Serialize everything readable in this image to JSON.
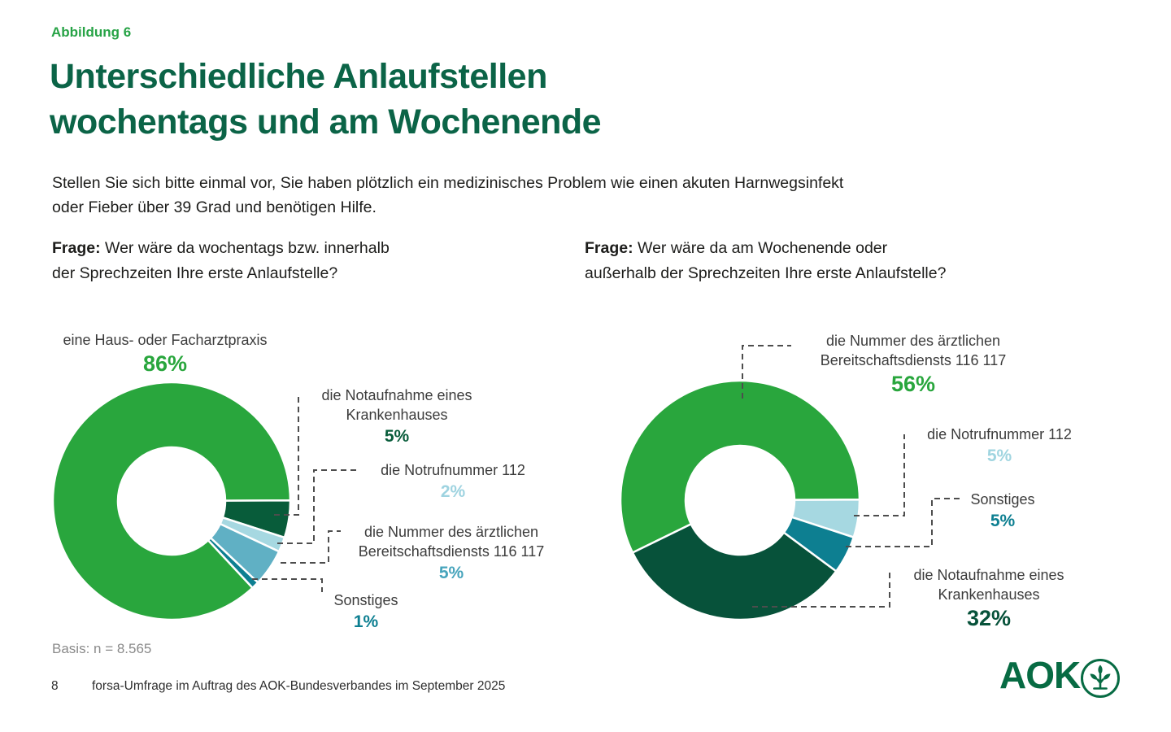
{
  "page": {
    "figure_label": "Abbildung 6",
    "title_line1": "Unterschiedliche Anlaufstellen",
    "title_line2": "wochentags und am Wochenende",
    "intro_line1": "Stellen Sie sich bitte einmal vor, Sie haben plötzlich ein medizinisches Problem wie einen akuten Harnwegsinfekt",
    "intro_line2": "oder Fieber über 39 Grad und benötigen Hilfe.",
    "basis": "Basis: n = 8.565",
    "footer": {
      "page_number": "8",
      "source": "forsa-Umfrage im Auftrag des AOK-Bundesverbandes im September 2025"
    },
    "logo_text": "AOK"
  },
  "colors": {
    "brand_green": "#29a63d",
    "dark_green": "#085c3a",
    "light_blue": "#a6d8e1",
    "mid_teal": "#60b0c4",
    "dark_teal": "#0d7f91",
    "title_green": "#0b6447",
    "figure_label_green": "#27a346",
    "label_gray": "#3c3c3c",
    "muted_gray": "#8a8a8a",
    "leader_line": "#4d4d4d",
    "logo_green": "#076b43"
  },
  "chart_data": [
    {
      "type": "pie",
      "subtype": "donut",
      "id": "weekday",
      "question_prefix": "Frage:",
      "question_line1": "Wer wäre da wochentags bzw. innerhalb",
      "question_line2": "der Sprechzeiten Ihre erste Anlaufstelle?",
      "start_angle": 137,
      "legend_position": "callouts-with-dashed-leaders",
      "segments": [
        {
          "label": "eine Haus- oder Facharztpraxis",
          "value": 86,
          "display": "86%",
          "color": "#29a63d",
          "value_color": "#29a63d"
        },
        {
          "label": "die Notaufnahme eines Krankenhauses",
          "value": 5,
          "display": "5%",
          "color": "#085c3a",
          "value_color": "#085c3a"
        },
        {
          "label": "die Notrufnummer 112",
          "value": 2,
          "display": "2%",
          "color": "#a6d8e1",
          "value_color": "#9ed3e0"
        },
        {
          "label": "die Nummer des ärztlichen Bereitschaftsdiensts 116 117",
          "value": 5,
          "display": "5%",
          "color": "#60b0c4",
          "value_color": "#47a4bc"
        },
        {
          "label": "Sonstiges",
          "value": 1,
          "display": "1%",
          "color": "#0d7f91",
          "value_color": "#0d7f91"
        }
      ]
    },
    {
      "type": "pie",
      "subtype": "donut",
      "id": "weekend",
      "question_prefix": "Frage:",
      "question_line1": "Wer wäre da am Wochenende oder",
      "question_line2": "außerhalb der Sprechzeiten Ihre erste Anlaufstelle?",
      "start_angle": 244,
      "legend_position": "callouts-with-dashed-leaders",
      "segments": [
        {
          "label": "die Nummer des ärztlichen Bereitschaftsdiensts 116 117",
          "value": 56,
          "display": "56%",
          "color": "#29a63d",
          "value_color": "#29a63d"
        },
        {
          "label": "die Notrufnummer 112",
          "value": 5,
          "display": "5%",
          "color": "#a6d8e1",
          "value_color": "#a0d5e0"
        },
        {
          "label": "Sonstiges",
          "value": 5,
          "display": "5%",
          "color": "#0d7f91",
          "value_color": "#0d7f91"
        },
        {
          "label": "die Notaufnahme eines Krankenhauses",
          "value": 32,
          "display": "32%",
          "color": "#07523a",
          "value_color": "#07523a"
        }
      ]
    }
  ]
}
